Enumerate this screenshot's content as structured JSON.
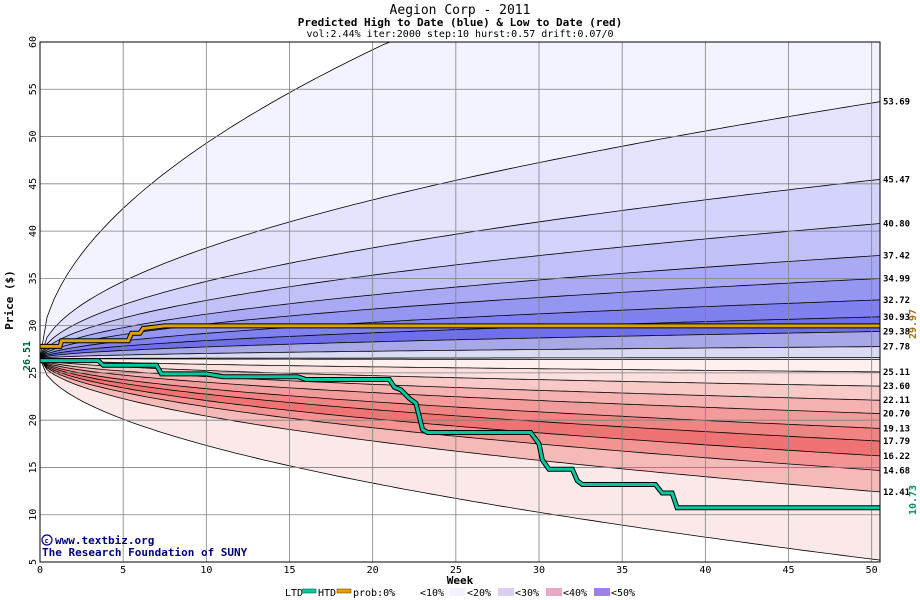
{
  "chart_data": {
    "type": "area",
    "title": "Aegion Corp - 2011",
    "subtitle": "Predicted High to Date (blue) &  Low to Date (red)",
    "params": "vol:2.44% iter:2000 step:10 hurst:0.57 drift:0.07/0",
    "xlabel": "Week",
    "ylabel": "Price ($)",
    "xlim": [
      0,
      50.5
    ],
    "ylim": [
      5,
      60
    ],
    "x_ticks": [
      0,
      5,
      10,
      15,
      20,
      25,
      30,
      35,
      40,
      45,
      50
    ],
    "y_ticks": [
      5,
      10,
      15,
      20,
      25,
      30,
      35,
      40,
      45,
      50,
      55,
      60
    ],
    "grid": true,
    "start_value": "26.51",
    "current_high_value": "29.97",
    "current_low_value": "10.73",
    "blue_levels": [
      "53.69",
      "45.47",
      "40.80",
      "37.42",
      "34.99",
      "32.72",
      "30.93",
      "29.38",
      "27.78"
    ],
    "red_levels": [
      "25.11",
      "23.60",
      "22.11",
      "20.70",
      "19.13",
      "17.79",
      "16.22",
      "14.68",
      "12.41"
    ],
    "htd_series": {
      "name": "HTD",
      "color": "#e0a000",
      "x": [
        0,
        1.2,
        1.3,
        5.3,
        5.5,
        6,
        6.2,
        7.5,
        50.5
      ],
      "y": [
        27.8,
        27.8,
        28.4,
        28.4,
        29.2,
        29.2,
        29.7,
        29.97,
        29.97
      ]
    },
    "ltd_series": {
      "name": "LTD",
      "color": "#00c8a0",
      "x": [
        0,
        3.5,
        3.8,
        7,
        7.3,
        10,
        11,
        15.5,
        16,
        21,
        21.3,
        21.7,
        22.2,
        22.6,
        23,
        23.3,
        29.5,
        30,
        30.2,
        30.6,
        32,
        32.3,
        32.6,
        37,
        37.4,
        38,
        38.3,
        50.5
      ],
      "y": [
        26.3,
        26.3,
        25.8,
        25.8,
        24.9,
        24.9,
        24.6,
        24.6,
        24.3,
        24.3,
        23.5,
        23.2,
        22.3,
        21.8,
        19.0,
        18.7,
        18.7,
        17.5,
        15.8,
        14.8,
        14.8,
        13.6,
        13.2,
        13.2,
        12.3,
        12.3,
        10.73,
        10.73
      ]
    },
    "legend": {
      "ltd": "LTD",
      "htd": "HTD",
      "prob": "prob:0%",
      "p10": "<10%",
      "p20": "<20%",
      "p30": "<30%",
      "p40": "<40%",
      "p50": "<50%"
    },
    "colors": {
      "blue_bands": [
        "#f3f3ff",
        "#e4e4ff",
        "#d3d3fb",
        "#c1c1f7",
        "#a9a9f4",
        "#9595f2",
        "#8080ee",
        "#6f6feb",
        "#a8a8e8",
        "#dadaf5"
      ],
      "red_bands": [
        "#fff0f0",
        "#fce0df",
        "#f9c9c8",
        "#f6b2b1",
        "#f39b9a",
        "#f08482",
        "#ee7372",
        "#f39493",
        "#f5b9b8",
        "#fbe8e8"
      ],
      "center_band": "#ffffff",
      "credit": "#000080"
    }
  },
  "credits": {
    "line1": "www.textbiz.org",
    "line2": "The Research Foundation of SUNY"
  }
}
